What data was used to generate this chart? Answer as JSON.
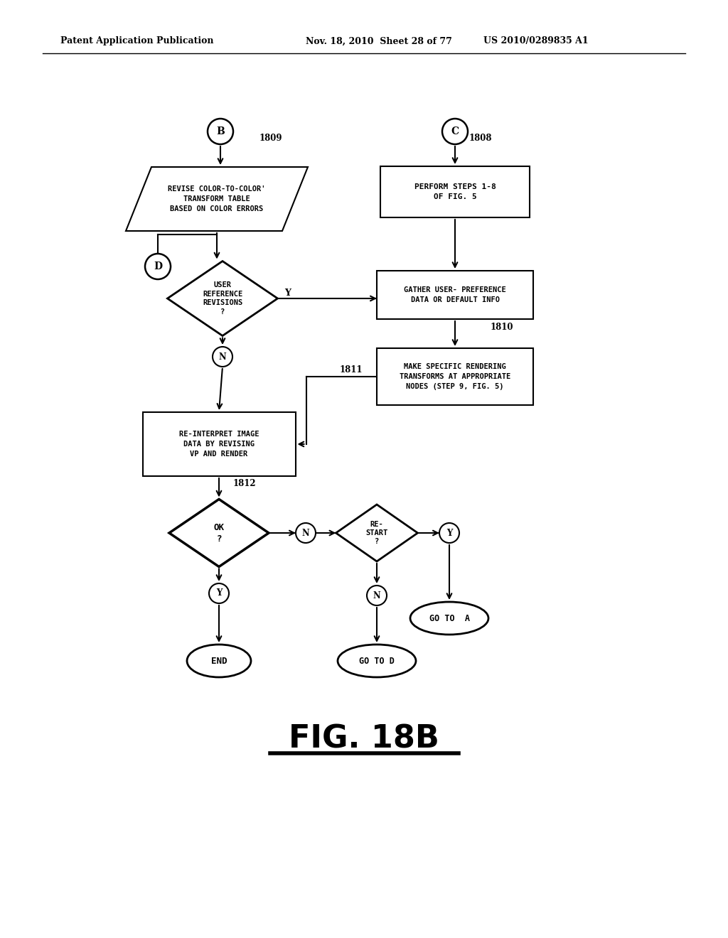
{
  "bg_color": "#ffffff",
  "header_left": "Patent Application Publication",
  "header_mid": "Nov. 18, 2010  Sheet 28 of 77",
  "header_right": "US 2010/0289835 A1",
  "figure_label": "FIG. 18B"
}
